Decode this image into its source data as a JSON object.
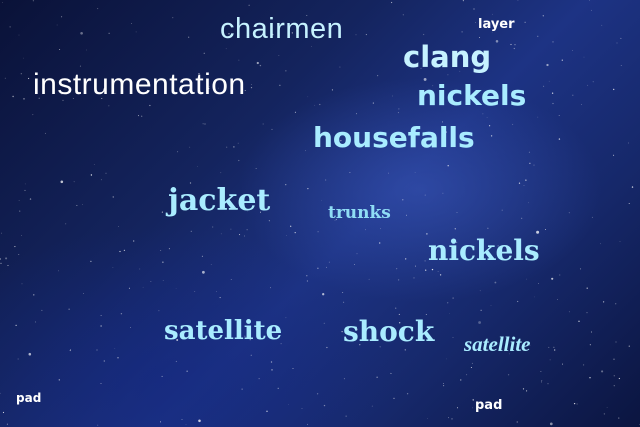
{
  "colors": {
    "white": "#ffffff",
    "cyan": "#a9ecff",
    "pale_cyan": "#c8f3ff",
    "sky": "#8fdcf5"
  },
  "words": {
    "chairmen": "chairmen",
    "layer": "layer",
    "clang": "clang",
    "instrumentation": "instrumentation",
    "nickels_top": "nickels",
    "housefalls": "housefalls",
    "jacket": "jacket",
    "trunks": "trunks",
    "nickels_mid": "nickels",
    "satellite_left": "satellite",
    "shock": "shock",
    "satellite_script": "satellite",
    "pad_left": "pad",
    "pad_right": "pad"
  }
}
